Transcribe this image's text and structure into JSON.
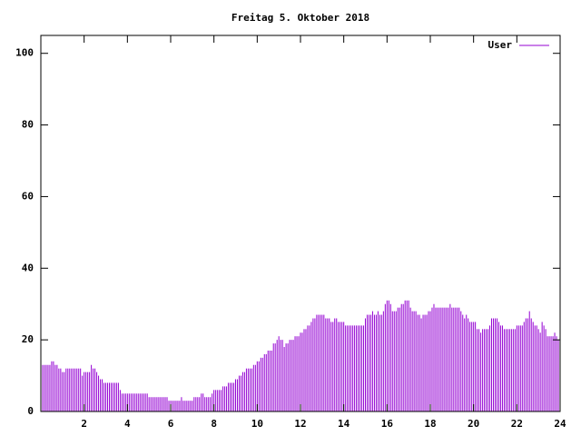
{
  "chart_data": {
    "type": "impulse",
    "title": "Freitag 5. Oktober 2018",
    "xlim": [
      0,
      24
    ],
    "xticks": [
      2,
      4,
      6,
      8,
      10,
      12,
      14,
      16,
      18,
      20,
      22,
      24
    ],
    "ylim": [
      0,
      105
    ],
    "yticks": [
      0,
      20,
      40,
      60,
      80,
      100
    ],
    "legend": "top-right",
    "x": [
      0,
      0.083,
      0.167,
      0.25,
      0.333,
      0.417,
      0.5,
      0.583,
      0.667,
      0.75,
      0.833,
      0.917,
      1,
      1.083,
      1.167,
      1.25,
      1.333,
      1.417,
      1.5,
      1.583,
      1.667,
      1.75,
      1.833,
      1.917,
      2,
      2.083,
      2.167,
      2.25,
      2.333,
      2.417,
      2.5,
      2.583,
      2.667,
      2.75,
      2.833,
      2.917,
      3,
      3.083,
      3.167,
      3.25,
      3.333,
      3.417,
      3.5,
      3.583,
      3.667,
      3.75,
      3.833,
      3.917,
      4,
      4.083,
      4.167,
      4.25,
      4.333,
      4.417,
      4.5,
      4.583,
      4.667,
      4.75,
      4.833,
      4.917,
      5,
      5.083,
      5.167,
      5.25,
      5.333,
      5.417,
      5.5,
      5.583,
      5.667,
      5.75,
      5.833,
      5.917,
      6,
      6.083,
      6.167,
      6.25,
      6.333,
      6.417,
      6.5,
      6.583,
      6.667,
      6.75,
      6.833,
      6.917,
      7,
      7.083,
      7.167,
      7.25,
      7.333,
      7.417,
      7.5,
      7.583,
      7.667,
      7.75,
      7.833,
      7.917,
      8,
      8.083,
      8.167,
      8.25,
      8.333,
      8.417,
      8.5,
      8.583,
      8.667,
      8.75,
      8.833,
      8.917,
      9,
      9.083,
      9.167,
      9.25,
      9.333,
      9.417,
      9.5,
      9.583,
      9.667,
      9.75,
      9.833,
      9.917,
      10,
      10.083,
      10.167,
      10.25,
      10.333,
      10.417,
      10.5,
      10.583,
      10.667,
      10.75,
      10.833,
      10.917,
      11,
      11.083,
      11.167,
      11.25,
      11.333,
      11.417,
      11.5,
      11.583,
      11.667,
      11.75,
      11.833,
      11.917,
      12,
      12.083,
      12.167,
      12.25,
      12.333,
      12.417,
      12.5,
      12.583,
      12.667,
      12.75,
      12.833,
      12.917,
      13,
      13.083,
      13.167,
      13.25,
      13.333,
      13.417,
      13.5,
      13.583,
      13.667,
      13.75,
      13.833,
      13.917,
      14,
      14.083,
      14.167,
      14.25,
      14.333,
      14.417,
      14.5,
      14.583,
      14.667,
      14.75,
      14.833,
      14.917,
      15,
      15.083,
      15.167,
      15.25,
      15.333,
      15.417,
      15.5,
      15.583,
      15.667,
      15.75,
      15.833,
      15.917,
      16,
      16.083,
      16.167,
      16.25,
      16.333,
      16.417,
      16.5,
      16.583,
      16.667,
      16.75,
      16.833,
      16.917,
      17,
      17.083,
      17.167,
      17.25,
      17.333,
      17.417,
      17.5,
      17.583,
      17.667,
      17.75,
      17.833,
      17.917,
      18,
      18.083,
      18.167,
      18.25,
      18.333,
      18.417,
      18.5,
      18.583,
      18.667,
      18.75,
      18.833,
      18.917,
      19,
      19.083,
      19.167,
      19.25,
      19.333,
      19.417,
      19.5,
      19.583,
      19.667,
      19.75,
      19.833,
      19.917,
      20,
      20.083,
      20.167,
      20.25,
      20.333,
      20.417,
      20.5,
      20.583,
      20.667,
      20.75,
      20.833,
      20.917,
      21,
      21.083,
      21.167,
      21.25,
      21.333,
      21.417,
      21.5,
      21.583,
      21.667,
      21.75,
      21.833,
      21.917,
      22,
      22.083,
      22.167,
      22.25,
      22.333,
      22.417,
      22.5,
      22.583,
      22.667,
      22.75,
      22.833,
      22.917,
      23,
      23.083,
      23.167,
      23.25,
      23.333,
      23.417,
      23.5,
      23.583,
      23.667,
      23.75,
      23.833,
      23.917
    ],
    "series": [
      {
        "name": "User",
        "color": "#9400d3",
        "values": [
          13,
          13,
          13,
          13,
          13,
          13,
          14,
          14,
          13,
          13,
          12,
          12,
          11,
          11,
          12,
          12,
          12,
          12,
          12,
          12,
          12,
          12,
          12,
          10,
          11,
          11,
          11,
          11,
          13,
          12,
          12,
          11,
          10,
          9,
          9,
          8,
          8,
          8,
          8,
          8,
          8,
          8,
          8,
          8,
          6,
          5,
          5,
          5,
          5,
          5,
          5,
          5,
          5,
          5,
          5,
          5,
          5,
          5,
          5,
          5,
          4,
          4,
          4,
          4,
          4,
          4,
          4,
          4,
          4,
          4,
          4,
          3,
          3,
          3,
          3,
          3,
          3,
          3,
          4,
          3,
          3,
          3,
          3,
          3,
          3,
          4,
          4,
          4,
          4,
          5,
          5,
          4,
          4,
          4,
          4,
          5,
          6,
          6,
          6,
          6,
          6,
          7,
          7,
          7,
          8,
          8,
          8,
          8,
          9,
          9,
          10,
          10,
          11,
          11,
          12,
          12,
          12,
          12,
          13,
          13,
          14,
          14,
          15,
          15,
          16,
          16,
          17,
          17,
          17,
          19,
          19,
          20,
          21,
          20,
          20,
          18,
          19,
          19,
          20,
          20,
          20,
          21,
          21,
          21,
          22,
          22,
          23,
          23,
          24,
          24,
          25,
          26,
          26,
          27,
          27,
          27,
          27,
          27,
          26,
          26,
          26,
          25,
          25,
          26,
          26,
          25,
          25,
          25,
          25,
          24,
          24,
          24,
          24,
          24,
          24,
          24,
          24,
          24,
          24,
          24,
          26,
          27,
          27,
          27,
          28,
          27,
          27,
          28,
          27,
          27,
          28,
          30,
          31,
          31,
          30,
          28,
          28,
          28,
          29,
          29,
          30,
          30,
          31,
          31,
          31,
          29,
          28,
          28,
          28,
          27,
          27,
          26,
          27,
          27,
          27,
          28,
          28,
          29,
          30,
          29,
          29,
          29,
          29,
          29,
          29,
          29,
          29,
          30,
          29,
          29,
          29,
          29,
          29,
          28,
          27,
          26,
          27,
          26,
          25,
          25,
          25,
          25,
          23,
          23,
          22,
          23,
          23,
          23,
          23,
          24,
          26,
          26,
          26,
          26,
          25,
          24,
          24,
          23,
          23,
          23,
          23,
          23,
          23,
          23,
          24,
          24,
          24,
          24,
          25,
          26,
          26,
          28,
          26,
          25,
          24,
          24,
          23,
          22,
          25,
          24,
          23,
          21,
          21,
          21,
          21,
          22,
          21,
          20
        ]
      }
    ]
  }
}
